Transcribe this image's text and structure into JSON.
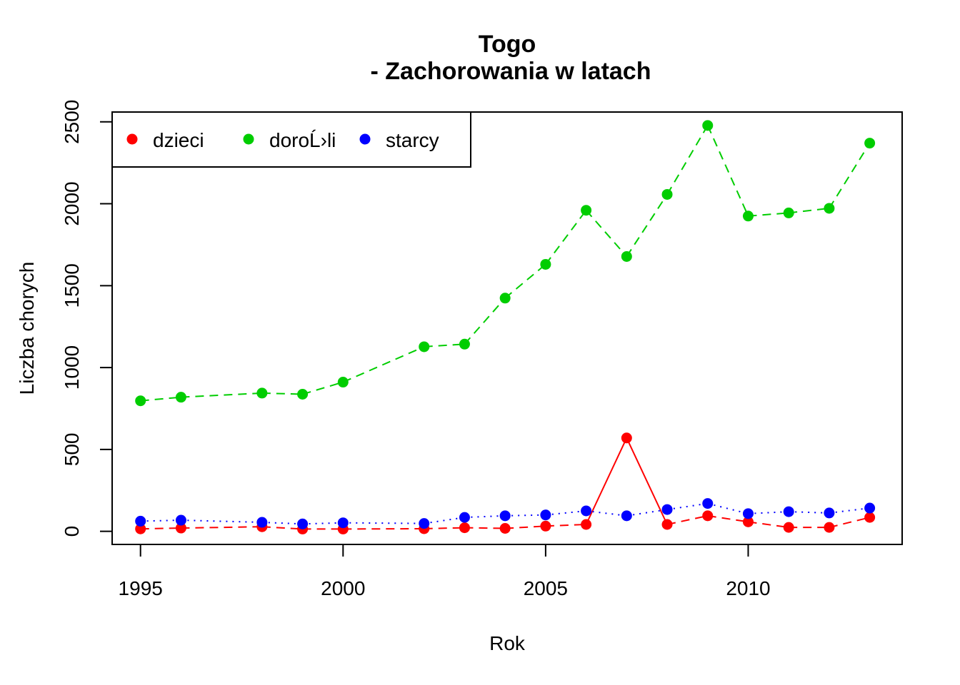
{
  "chart_data": {
    "type": "line",
    "title": "Togo",
    "subtitle": "- Zachorowania w latach",
    "xlabel": "Rok",
    "ylabel": "Liczba chorych",
    "xlim": [
      1994.3,
      2013.8
    ],
    "ylim": [
      -80,
      2560
    ],
    "x_ticks": [
      1995,
      2000,
      2005,
      2010
    ],
    "y_ticks": [
      0,
      500,
      1000,
      1500,
      2000,
      2500
    ],
    "grid": false,
    "legend_position": "top-left",
    "x": [
      1995,
      1996,
      1998,
      1999,
      2000,
      2002,
      2003,
      2004,
      2005,
      2006,
      2007,
      2008,
      2009,
      2010,
      2011,
      2012,
      2013
    ],
    "series": [
      {
        "name": "dzieci",
        "color": "#ff0000",
        "line_style": "dashed",
        "values": [
          15,
          20,
          28,
          14,
          14,
          16,
          22,
          18,
          32,
          42,
          570,
          42,
          95,
          58,
          24,
          24,
          85
        ]
      },
      {
        "name": "doroĹ›li",
        "color": "#00cd00",
        "line_style": "dashed",
        "values": [
          797,
          819,
          844,
          837,
          911,
          1127,
          1143,
          1424,
          1630,
          1960,
          1678,
          2057,
          2478,
          1925,
          1944,
          1972,
          2370
        ]
      },
      {
        "name": "starcy",
        "color": "#0000ff",
        "line_style": "dotted",
        "values": [
          62,
          68,
          55,
          45,
          52,
          48,
          85,
          95,
          100,
          125,
          95,
          133,
          170,
          108,
          120,
          112,
          142
        ]
      }
    ]
  }
}
